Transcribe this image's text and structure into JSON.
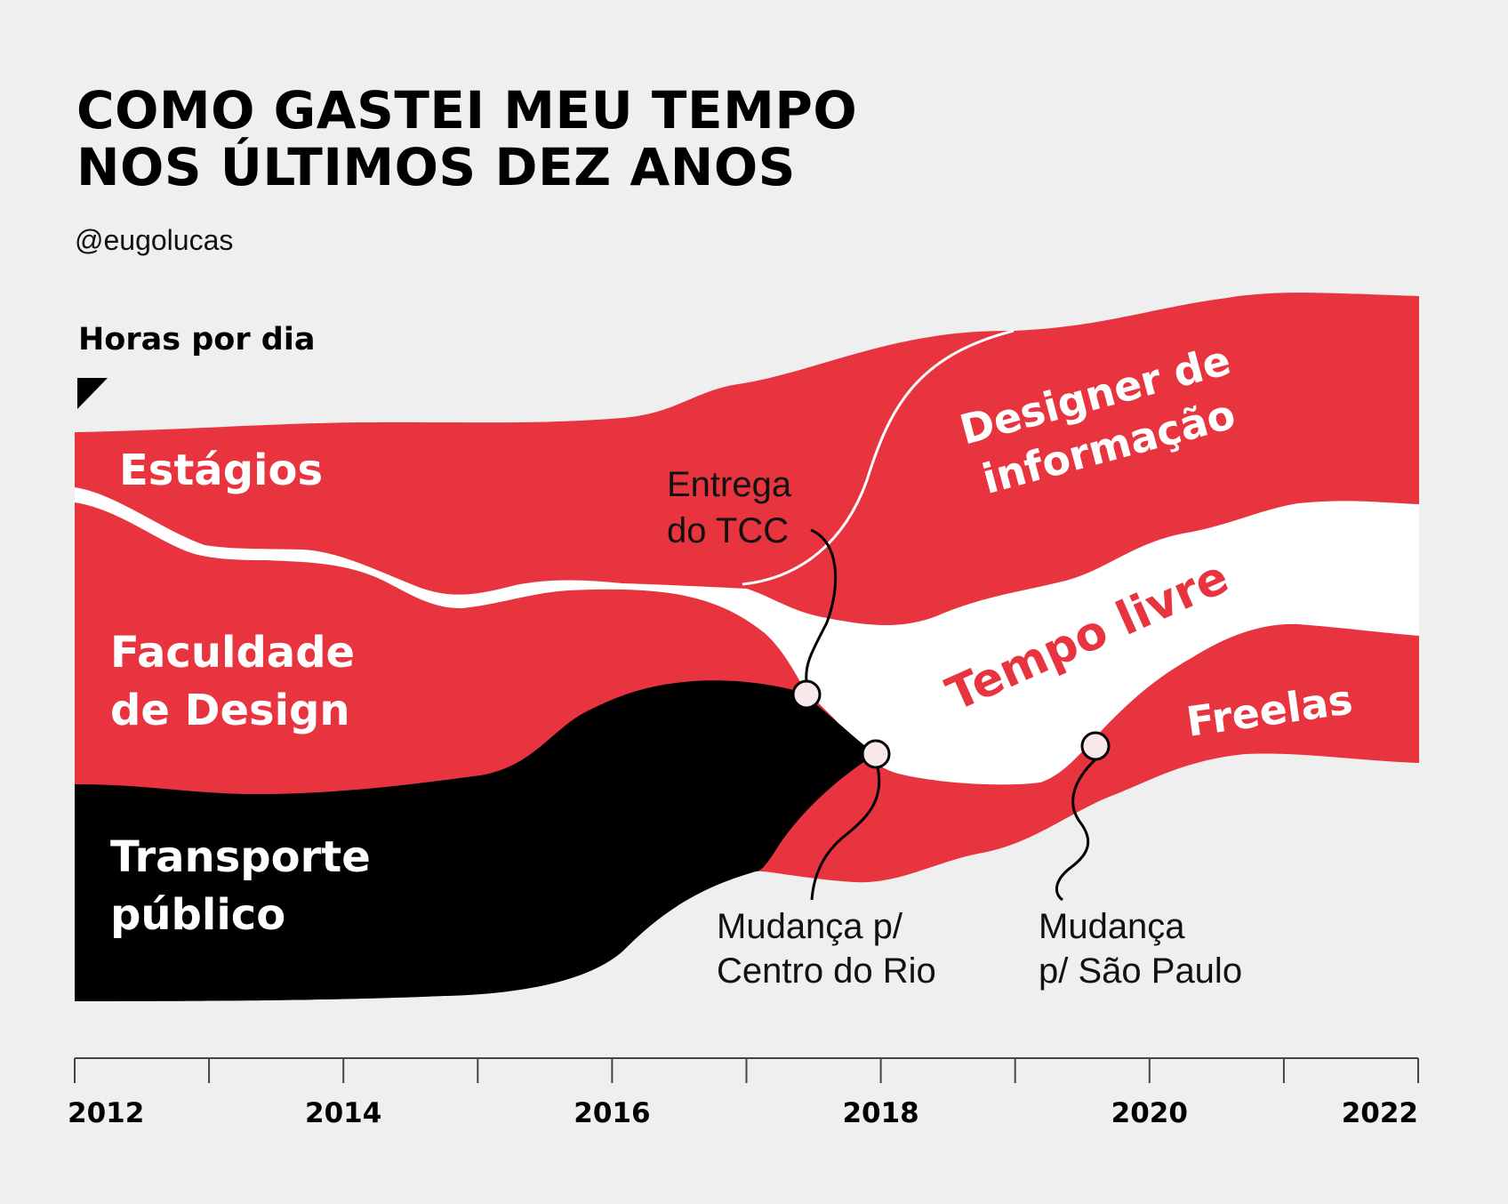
{
  "header": {
    "title_line1": "COMO GASTEI MEU TEMPO",
    "title_line2": "NOS ÚLTIMOS DEZ ANOS",
    "author": "@eugolucas",
    "y_axis_label": "Horas por dia"
  },
  "colors": {
    "background": "#efefef",
    "red": "#e8343f",
    "black": "#000000",
    "free_time": "#ffffff",
    "marker_fill": "#f9e8ea"
  },
  "chart_data": {
    "type": "area",
    "subtype": "streamgraph",
    "title": "COMO GASTEI MEU TEMPO NOS ÚLTIMOS DEZ ANOS",
    "ylabel": "Horas por dia",
    "xlabel": "",
    "x_ticks": [
      "2012",
      "2014",
      "2016",
      "2018",
      "2020",
      "2022"
    ],
    "xlim": [
      2012,
      2022
    ],
    "x": [
      2012,
      2013,
      2014,
      2015,
      2016,
      2017,
      2018,
      2019,
      2020,
      2021,
      2022
    ],
    "series": [
      {
        "name": "Estágios",
        "color": "#e8343f",
        "values": [
          1.5,
          1.9,
          2.0,
          2.3,
          2.6,
          2.5,
          0,
          0,
          0,
          0,
          0
        ]
      },
      {
        "name": "Designer de informação",
        "color": "#e8343f",
        "values": [
          0,
          0,
          0,
          0,
          0,
          0.3,
          6.5,
          6.9,
          6.5,
          4.1,
          4.3
        ]
      },
      {
        "name": "Tempo livre",
        "color": "#ffffff",
        "values": [
          0.3,
          0.1,
          0.1,
          0.1,
          0.1,
          0.1,
          3.6,
          3.1,
          2.8,
          1.8,
          1.7
        ]
      },
      {
        "name": "Freelas",
        "color": "#e8343f",
        "values": [
          0,
          0,
          0,
          0,
          0,
          0,
          0,
          0,
          0.8,
          2.0,
          2.5
        ]
      },
      {
        "name": "Faculdade de Design",
        "color": "#e8343f",
        "values": [
          5.5,
          5.0,
          4.8,
          3.9,
          3.0,
          1.0,
          0,
          0,
          0,
          0,
          0
        ]
      },
      {
        "name": "Mudança p/ Centro do Rio (transição)",
        "color": "#e8343f",
        "values": [
          0,
          0,
          0,
          0,
          0,
          0.6,
          3.6,
          3.1,
          1.6,
          0,
          0
        ]
      },
      {
        "name": "Transporte público",
        "color": "#000000",
        "values": [
          4.1,
          4.1,
          4.2,
          4.3,
          5.3,
          4.2,
          0,
          0,
          0,
          0,
          0
        ]
      }
    ],
    "labels": {
      "estagios": "Estágios",
      "faculdade_1": "Faculdade",
      "faculdade_2": "de Design",
      "transporte_1": "Transporte",
      "transporte_2": "público",
      "designer_1": "Designer de",
      "designer_2": "informação",
      "tempo_livre": "Tempo livre",
      "freelas": "Freelas"
    },
    "annotations": [
      {
        "id": "tcc",
        "line1": "Entrega",
        "line2": "do TCC",
        "x": 2017.5
      },
      {
        "id": "rio",
        "line1": "Mudança p/",
        "line2": "Centro do Rio",
        "x": 2018.0
      },
      {
        "id": "sp",
        "line1": "Mudança",
        "line2": "p/ São Paulo",
        "x": 2019.7
      }
    ],
    "grid": false
  }
}
